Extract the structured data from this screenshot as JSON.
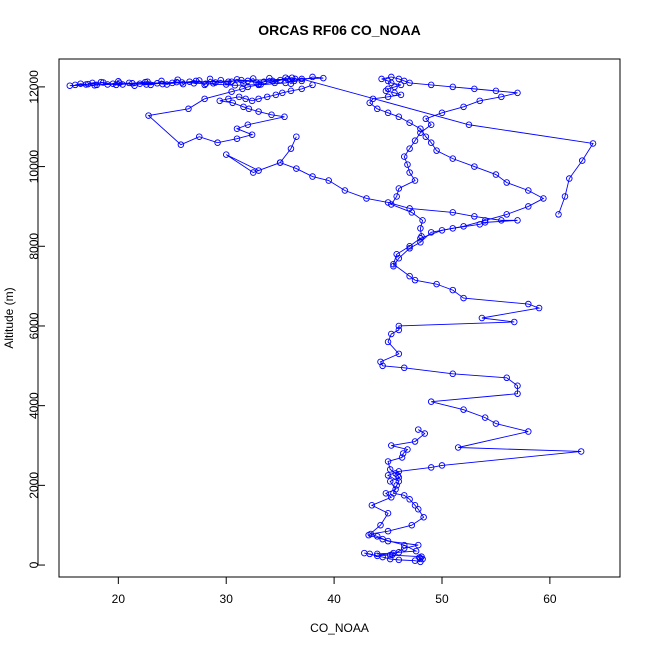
{
  "chart_data": {
    "type": "line",
    "title": "ORCAS RF06 CO_NOAA",
    "xlabel": "CO_NOAA",
    "ylabel": "Altitude (m)",
    "xlim": [
      14.5,
      66.5
    ],
    "ylim": [
      -300,
      12700
    ],
    "x_ticks": [
      20,
      30,
      40,
      50,
      60
    ],
    "y_ticks": [
      0,
      2000,
      4000,
      6000,
      8000,
      10000,
      12000
    ],
    "grid": false,
    "legend": "none",
    "color": "#0000ff",
    "marker": "open-circle",
    "series": [
      {
        "x": [
          48.0,
          47.5,
          46.0,
          45.2,
          44.5,
          43.3,
          42.8,
          44.0,
          45.4,
          46.5,
          47.8,
          45.0,
          44.0,
          43.4,
          45.0,
          47.2,
          48.3,
          47.8,
          47.5,
          47.0,
          46.5,
          45.5,
          45.8,
          46.0,
          45.0,
          46.0,
          49.0,
          50.0,
          62.9,
          51.5,
          58.0,
          55.0,
          54.0,
          52.0,
          49.0,
          57.0,
          57.0,
          56.0,
          51.0,
          46.5,
          44.5,
          44.3,
          46.0,
          45.0,
          45.3,
          46.0,
          46.0,
          56.7,
          53.7,
          59.0,
          58.0,
          52.0,
          51.0,
          49.5,
          47.5,
          47.0,
          45.5,
          45.8,
          47.0,
          48.0,
          50.0,
          52.0,
          54.0,
          56.0,
          58.0,
          59.4,
          58.0,
          56.0,
          55.0,
          53.0,
          51.0,
          49.5,
          49.0,
          48.5,
          48.0,
          47.0,
          46.0,
          45.0,
          44.0,
          43.3,
          43.6,
          45.0,
          46.2,
          45.6,
          44.8,
          45.0,
          45.6,
          46.2,
          45.3,
          45.0,
          44.4,
          45.3,
          46.0,
          46.5,
          47.0,
          49.0,
          51.0,
          53.0,
          55.0,
          57.0,
          55.5,
          53.5,
          52.0,
          50.0,
          48.5,
          49.0,
          48.0,
          47.5,
          47.0,
          46.5,
          46.8,
          47.0,
          47.5,
          46.0,
          45.8,
          45.3,
          47.2,
          48.2,
          48.0,
          48.1
        ],
        "y": [
          80,
          110,
          130,
          150,
          200,
          280,
          300,
          230,
          260,
          420,
          500,
          600,
          720,
          780,
          850,
          1000,
          1200,
          1400,
          1500,
          1650,
          1750,
          1800,
          2000,
          2100,
          2250,
          2350,
          2450,
          2500,
          2850,
          2950,
          3350,
          3550,
          3700,
          3900,
          4100,
          4300,
          4500,
          4700,
          4800,
          4950,
          5000,
          5100,
          5300,
          5600,
          5800,
          5900,
          6000,
          6100,
          6200,
          6450,
          6550,
          6700,
          6900,
          7050,
          7150,
          7250,
          7550,
          7800,
          8000,
          8200,
          8400,
          8500,
          8650,
          8800,
          9000,
          9200,
          9400,
          9600,
          9800,
          10000,
          10200,
          10400,
          10600,
          10750,
          10950,
          11100,
          11250,
          11350,
          11450,
          11600,
          11700,
          11750,
          11800,
          11850,
          11900,
          11950,
          12000,
          12050,
          12100,
          12150,
          12200,
          12250,
          12200,
          12150,
          12100,
          12050,
          12000,
          11950,
          11900,
          11850,
          11750,
          11650,
          11500,
          11350,
          11200,
          11050,
          10850,
          10650,
          10450,
          10250,
          10050,
          9850,
          9650,
          9450,
          9250,
          9050,
          8850,
          8650,
          8450,
          8250
        ]
      },
      {
        "x": [
          48.2,
          48.0,
          47.9,
          48.1,
          45.2,
          44.0,
          45.5,
          46.0,
          47.6,
          46.5,
          44.5,
          43.2,
          44.3,
          45.0,
          43.5,
          45.3,
          44.8,
          45.7,
          45.2,
          46.0,
          45.9,
          45.7,
          45.2,
          45.0,
          46.3,
          46.4,
          46.8,
          45.3,
          47.5,
          48.4,
          47.8
        ],
        "y": [
          150,
          170,
          190,
          210,
          250,
          280,
          300,
          320,
          350,
          500,
          650,
          750,
          1000,
          1300,
          1500,
          1700,
          1800,
          1900,
          2100,
          2200,
          2250,
          2300,
          2400,
          2600,
          2700,
          2800,
          2900,
          3000,
          3100,
          3300,
          3400
        ]
      },
      {
        "x": [
          16.0,
          16.5,
          17.0,
          17.6,
          18.0,
          18.4,
          19.0,
          19.5,
          20.0,
          20.4,
          21.0,
          21.5,
          22.0,
          22.5,
          23.0,
          23.6,
          24.0,
          24.5,
          25.0,
          25.5,
          26.0,
          26.6,
          27.0,
          27.5,
          28.0,
          28.5,
          29.0,
          29.5,
          30.0,
          30.5,
          31.0,
          31.6,
          32.0,
          32.5,
          33.0,
          33.5,
          34.0,
          34.5,
          35.0,
          35.5,
          36.0,
          36.4,
          37.0,
          38.0,
          39.0,
          15.5,
          17.2,
          18.6,
          19.8,
          21.3,
          22.7,
          24.1,
          25.9,
          27.2,
          28.8,
          30.2,
          31.4,
          32.8,
          34.3,
          35.7,
          36.1,
          33.2,
          30.8,
          28.1,
          25.4,
          22.6,
          20.1,
          17.8
        ],
        "y": [
          12050,
          12080,
          12060,
          12100,
          12050,
          12120,
          12060,
          12080,
          12140,
          12060,
          12100,
          12030,
          12080,
          12120,
          12050,
          12090,
          12150,
          12060,
          12100,
          12180,
          12070,
          12130,
          12090,
          12160,
          12050,
          12200,
          12110,
          12170,
          12060,
          12130,
          12190,
          12080,
          12150,
          12210,
          12070,
          12130,
          12220,
          12100,
          12170,
          12230,
          12080,
          12200,
          12150,
          12250,
          12220,
          12030,
          12070,
          12110,
          12050,
          12090,
          12130,
          12070,
          12110,
          12150,
          12090,
          12130,
          12170,
          12110,
          12150,
          12190,
          12230,
          12060,
          12040,
          12080,
          12120,
          12060,
          12100,
          12040
        ]
      },
      {
        "x": [
          38.0,
          37.0,
          36.0,
          35.2,
          34.6,
          33.8,
          33.0,
          32.4,
          31.8,
          31.2,
          30.2,
          29.4,
          30.6,
          31.6,
          32.1,
          33.0,
          34.2,
          35.4,
          32.0,
          31.0,
          32.4,
          31.0,
          29.2,
          27.5,
          25.8,
          22.8,
          26.5,
          28.0,
          30.5,
          31.5,
          32.0,
          33.0,
          35.5,
          36.3,
          37.0,
          52.5,
          64.0,
          63.0,
          61.8,
          61.4,
          60.8
        ],
        "y": [
          12050,
          11950,
          11900,
          11850,
          11800,
          11750,
          11700,
          11650,
          11700,
          11750,
          11700,
          11650,
          11600,
          11500,
          11450,
          11380,
          11300,
          11250,
          11050,
          10950,
          10800,
          10700,
          10600,
          10750,
          10550,
          11280,
          11450,
          11700,
          11880,
          11950,
          12000,
          12050,
          12100,
          12150,
          12200,
          11050,
          10580,
          10150,
          9700,
          9250,
          8800
        ]
      },
      {
        "x": [
          36.5,
          36.0,
          35.0,
          32.5,
          30.0,
          33.0,
          35.0,
          36.5,
          38.0,
          39.5,
          41.0,
          43.0,
          45.0,
          47.0,
          51.0,
          53.0,
          55.5,
          57.0,
          54.0,
          53.5,
          51.0,
          49.0,
          48.0,
          47.0,
          46.0,
          45.5
        ],
        "y": [
          10750,
          10450,
          10100,
          9850,
          10300,
          9900,
          10100,
          9950,
          9750,
          9650,
          9400,
          9200,
          9100,
          8950,
          8850,
          8750,
          8650,
          8650,
          8600,
          8550,
          8450,
          8350,
          8100,
          7950,
          7700,
          7500
        ]
      }
    ]
  }
}
